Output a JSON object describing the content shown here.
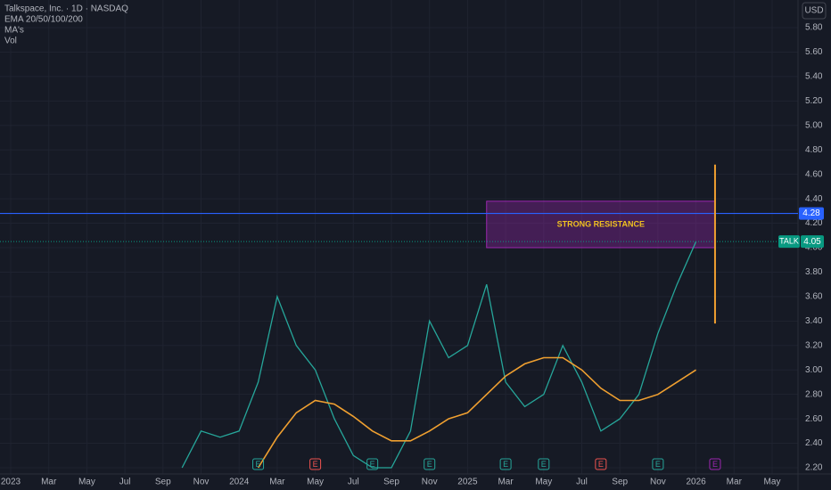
{
  "chart_data": {
    "type": "line",
    "title": "Talkspace, Inc. · 1D · NASDAQ",
    "indicators": [
      "EMA 20/50/100/200",
      "MA's",
      "Vol"
    ],
    "currency": "USD",
    "ylim": [
      2.2,
      5.8
    ],
    "yticks": [
      {
        "value": 2.2,
        "label": "2.20"
      },
      {
        "value": 2.4,
        "label": "2.40"
      },
      {
        "value": 2.6,
        "label": "2.60"
      },
      {
        "value": 2.8,
        "label": "2.80"
      },
      {
        "value": 3.0,
        "label": "3.00"
      },
      {
        "value": 3.2,
        "label": "3.20"
      },
      {
        "value": 3.4,
        "label": "3.40"
      },
      {
        "value": 3.6,
        "label": "3.60"
      },
      {
        "value": 3.8,
        "label": "3.80"
      },
      {
        "value": 4.0,
        "label": "4.00"
      },
      {
        "value": 4.2,
        "label": "4.20"
      },
      {
        "value": 4.4,
        "label": "4.40"
      },
      {
        "value": 4.6,
        "label": "4.60"
      },
      {
        "value": 4.8,
        "label": "4.80"
      },
      {
        "value": 5.0,
        "label": "5.00"
      },
      {
        "value": 5.2,
        "label": "5.20"
      },
      {
        "value": 5.4,
        "label": "5.40"
      },
      {
        "value": 5.6,
        "label": "5.60"
      },
      {
        "value": 5.8,
        "label": "5.80"
      }
    ],
    "xticks": [
      {
        "value": "2023-01",
        "label": "2023"
      },
      {
        "value": "2023-03",
        "label": "Mar"
      },
      {
        "value": "2023-05",
        "label": "May"
      },
      {
        "value": "2023-07",
        "label": "Jul"
      },
      {
        "value": "2023-09",
        "label": "Sep"
      },
      {
        "value": "2023-11",
        "label": "Nov"
      },
      {
        "value": "2024-01",
        "label": "2024"
      },
      {
        "value": "2024-03",
        "label": "Mar"
      },
      {
        "value": "2024-05",
        "label": "May"
      },
      {
        "value": "2024-07",
        "label": "Jul"
      },
      {
        "value": "2024-09",
        "label": "Sep"
      },
      {
        "value": "2024-11",
        "label": "Nov"
      },
      {
        "value": "2025-01",
        "label": "2025"
      },
      {
        "value": "2025-03",
        "label": "Mar"
      },
      {
        "value": "2025-05",
        "label": "May"
      },
      {
        "value": "2025-07",
        "label": "Jul"
      },
      {
        "value": "2025-09",
        "label": "Sep"
      },
      {
        "value": "2025-11",
        "label": "Nov"
      },
      {
        "value": "2026-01",
        "label": "2026"
      },
      {
        "value": "2026-03",
        "label": "Mar"
      },
      {
        "value": "2026-05",
        "label": "May"
      }
    ],
    "x": [
      "2023-10",
      "2023-11",
      "2023-12",
      "2024-01",
      "2024-02",
      "2024-03",
      "2024-04",
      "2024-05",
      "2024-06",
      "2024-07",
      "2024-08",
      "2024-09",
      "2024-10",
      "2024-11",
      "2024-12",
      "2025-01",
      "2025-02",
      "2025-03",
      "2025-04",
      "2025-05",
      "2025-06",
      "2025-07",
      "2025-08",
      "2025-09",
      "2025-10",
      "2025-11",
      "2025-12",
      "2026-01"
    ],
    "series": [
      {
        "name": "TALK",
        "color": "#26a69a",
        "values": [
          2.2,
          2.5,
          2.45,
          2.5,
          2.9,
          3.6,
          3.2,
          3.0,
          2.6,
          2.3,
          2.2,
          2.2,
          2.5,
          3.4,
          3.1,
          3.2,
          3.7,
          2.9,
          2.7,
          2.8,
          3.2,
          2.9,
          2.5,
          2.6,
          2.8,
          3.3,
          3.7,
          4.05
        ]
      },
      {
        "color": "#f0a030",
        "values": [
          null,
          null,
          null,
          null,
          2.2,
          2.45,
          2.65,
          2.75,
          2.72,
          2.62,
          2.5,
          2.42,
          2.42,
          2.5,
          2.6,
          2.65,
          2.8,
          2.95,
          3.05,
          3.1,
          3.1,
          3.0,
          2.85,
          2.75,
          2.75,
          2.8,
          2.9,
          3.0
        ]
      }
    ],
    "resistance": {
      "label": "STRONG RESISTANCE",
      "x0": "2025-02",
      "x1": "2026-02",
      "y0": 4.0,
      "y1": 4.38,
      "color": "#9c27b0"
    },
    "level": {
      "value": 4.28,
      "label": "4.28",
      "color": "#2962ff"
    },
    "last_price": {
      "symbol": "TALK",
      "value": 4.05,
      "label": "4.05",
      "color": "#089981"
    },
    "range_line": {
      "x": "2026-02",
      "y0": 3.38,
      "y1": 4.68,
      "color": "#f0a030"
    },
    "events": [
      {
        "x": "2024-02",
        "label": "E",
        "color": "#26a69a"
      },
      {
        "x": "2024-05",
        "label": "E",
        "color": "#ef5350"
      },
      {
        "x": "2024-08",
        "label": "E",
        "color": "#26a69a"
      },
      {
        "x": "2024-11",
        "label": "E",
        "color": "#26a69a"
      },
      {
        "x": "2025-03",
        "label": "E",
        "color": "#26a69a"
      },
      {
        "x": "2025-05",
        "label": "E",
        "color": "#26a69a"
      },
      {
        "x": "2025-08",
        "label": "E",
        "color": "#ef5350"
      },
      {
        "x": "2025-11",
        "label": "E",
        "color": "#26a69a"
      },
      {
        "x": "2026-02",
        "label": "E",
        "color": "#9c27b0"
      }
    ]
  }
}
